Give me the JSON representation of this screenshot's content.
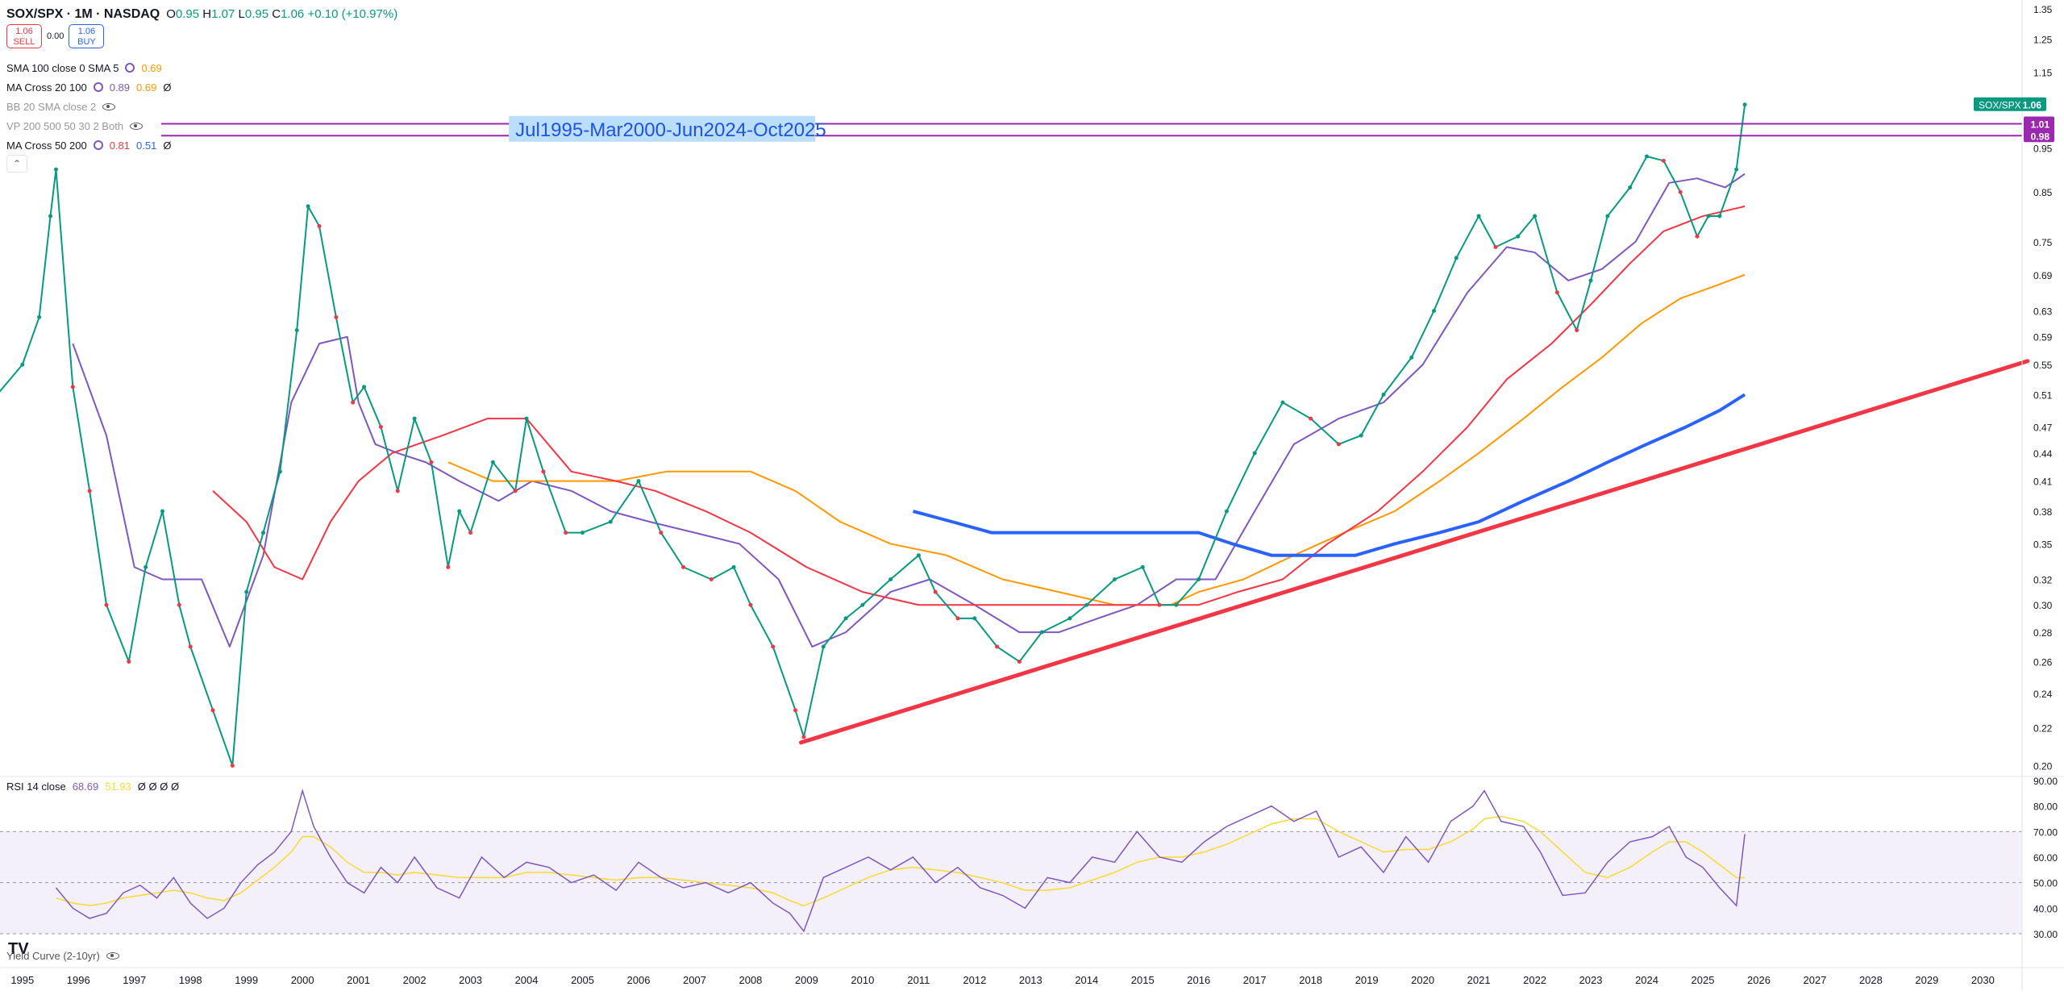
{
  "header": {
    "symbol": "SOX/SPX · 1M · NASDAQ",
    "ohlc": {
      "o_label": "O",
      "o": "0.95",
      "h_label": "H",
      "h": "1.07",
      "l_label": "L",
      "l": "0.95",
      "c_label": "C",
      "c": "1.06",
      "change": "+0.10 (+10.97%)"
    }
  },
  "trade": {
    "sell_price": "1.06",
    "sell_label": "SELL",
    "spread": "0.00",
    "buy_price": "1.06",
    "buy_label": "BUY"
  },
  "indicators": [
    {
      "name": "SMA 100 close 0 SMA 5",
      "v1": "0.69",
      "v2": "",
      "v3": "",
      "c1": "#ff9800",
      "c2": "",
      "visible": true
    },
    {
      "name": "MA Cross 20 100",
      "v1": "0.89",
      "v2": "0.69",
      "v3": "Ø",
      "c1": "#7e57c2",
      "c2": "#ff9800",
      "visible": true
    },
    {
      "name": "BB 20 SMA close 2",
      "v1": "",
      "v2": "",
      "v3": "",
      "c1": "",
      "c2": "",
      "visible": false
    },
    {
      "name": "VP 200 500 50 30 2 Both",
      "v1": "",
      "v2": "",
      "v3": "",
      "c1": "",
      "c2": "",
      "visible": false
    },
    {
      "name": "MA Cross 50 200",
      "v1": "0.81",
      "v2": "0.51",
      "v3": "Ø",
      "c1": "#f23645",
      "c2": "#2962ff",
      "visible": true
    }
  ],
  "collapse_glyph": "⌃",
  "rsi_legend": {
    "name": "RSI 14 close",
    "v1": "68.69",
    "v2": "51.93",
    "rest": "Ø Ø Ø Ø"
  },
  "yield_curve_legend": "Yield Curve (2-10yr)",
  "logo": "TV",
  "annotation": "Jul1995-Mar2000-Jun2024-Oct2025",
  "price_badges": [
    {
      "label": "SOX/SPX",
      "value": "1.06",
      "color": "#089981"
    },
    {
      "value": "1.01",
      "color": "#9c27b0"
    },
    {
      "value": "0.98",
      "color": "#9c27b0"
    }
  ],
  "chart_data": {
    "type": "line",
    "title": "SOX/SPX · 1M · NASDAQ",
    "scale": "log",
    "ylim": [
      0.195,
      1.38
    ],
    "xlim": [
      1994.6,
      2030.7
    ],
    "y_ticks": [
      "1.35",
      "1.25",
      "1.15",
      "1.06",
      "1.01",
      "0.98",
      "0.95",
      "0.85",
      "0.75",
      "0.69",
      "0.63",
      "0.59",
      "0.55",
      "0.51",
      "0.47",
      "0.44",
      "0.41",
      "0.38",
      "0.35",
      "0.32",
      "0.30",
      "0.28",
      "0.26",
      "0.24",
      "0.22",
      "0.20"
    ],
    "x_ticks": [
      "1995",
      "1996",
      "1997",
      "1998",
      "1999",
      "2000",
      "2001",
      "2002",
      "2003",
      "2004",
      "2005",
      "2006",
      "2007",
      "2008",
      "2009",
      "2010",
      "2011",
      "2012",
      "2013",
      "2014",
      "2015",
      "2016",
      "2017",
      "2018",
      "2019",
      "2020",
      "2021",
      "2022",
      "2023",
      "2024",
      "2025",
      "2026",
      "2027",
      "2028",
      "2029",
      "2030"
    ],
    "price": {
      "name": "SOX/SPX",
      "x": [
        1994.55,
        1995.0,
        1995.3,
        1995.5,
        1995.6,
        1995.9,
        1996.2,
        1996.5,
        1996.9,
        1997.2,
        1997.5,
        1997.8,
        1998.0,
        1998.4,
        1998.75,
        1999.0,
        1999.3,
        1999.6,
        1999.9,
        2000.1,
        2000.3,
        2000.6,
        2000.9,
        2001.1,
        2001.4,
        2001.7,
        2002.0,
        2002.3,
        2002.6,
        2002.8,
        2003.0,
        2003.4,
        2003.8,
        2004.0,
        2004.3,
        2004.7,
        2005.0,
        2005.5,
        2006.0,
        2006.4,
        2006.8,
        2007.3,
        2007.7,
        2008.0,
        2008.4,
        2008.8,
        2008.95,
        2009.3,
        2009.7,
        2010.0,
        2010.5,
        2011.0,
        2011.3,
        2011.7,
        2012.0,
        2012.4,
        2012.8,
        2013.2,
        2013.7,
        2014.0,
        2014.5,
        2015.0,
        2015.3,
        2015.6,
        2016.0,
        2016.5,
        2017.0,
        2017.5,
        2018.0,
        2018.5,
        2018.9,
        2019.3,
        2019.8,
        2020.2,
        2020.6,
        2021.0,
        2021.3,
        2021.7,
        2022.0,
        2022.4,
        2022.75,
        2023.0,
        2023.3,
        2023.7,
        2024.0,
        2024.3,
        2024.6,
        2024.9,
        2025.1,
        2025.3,
        2025.6,
        2025.75
      ],
      "y": [
        0.51,
        0.55,
        0.62,
        0.8,
        0.9,
        0.52,
        0.4,
        0.3,
        0.26,
        0.33,
        0.38,
        0.3,
        0.27,
        0.23,
        0.2,
        0.31,
        0.36,
        0.42,
        0.6,
        0.82,
        0.78,
        0.62,
        0.5,
        0.52,
        0.47,
        0.4,
        0.48,
        0.43,
        0.33,
        0.38,
        0.36,
        0.43,
        0.4,
        0.48,
        0.42,
        0.36,
        0.36,
        0.37,
        0.41,
        0.36,
        0.33,
        0.32,
        0.33,
        0.3,
        0.27,
        0.23,
        0.215,
        0.27,
        0.29,
        0.3,
        0.32,
        0.34,
        0.31,
        0.29,
        0.29,
        0.27,
        0.26,
        0.28,
        0.29,
        0.3,
        0.32,
        0.33,
        0.3,
        0.3,
        0.32,
        0.38,
        0.44,
        0.5,
        0.48,
        0.45,
        0.46,
        0.51,
        0.56,
        0.63,
        0.72,
        0.8,
        0.74,
        0.76,
        0.8,
        0.66,
        0.6,
        0.68,
        0.8,
        0.86,
        0.93,
        0.92,
        0.85,
        0.76,
        0.8,
        0.8,
        0.9,
        1.06
      ]
    },
    "series": [
      {
        "name": "MA Cross 20",
        "color": "#7e57c2",
        "x": [
          1995.9,
          1996.5,
          1997.0,
          1997.5,
          1998.2,
          1998.7,
          1999.3,
          1999.8,
          2000.3,
          2000.8,
          2001.0,
          2001.3,
          2001.7,
          2002.2,
          2002.8,
          2003.5,
          2004.1,
          2004.8,
          2005.5,
          2006.2,
          2007.0,
          2007.8,
          2008.5,
          2009.1,
          2009.7,
          2010.5,
          2011.2,
          2012.0,
          2012.8,
          2013.5,
          2014.2,
          2014.9,
          2015.6,
          2016.3,
          2017.0,
          2017.7,
          2018.5,
          2019.3,
          2020.0,
          2020.8,
          2021.5,
          2022.0,
          2022.6,
          2023.2,
          2023.8,
          2024.4,
          2024.9,
          2025.4,
          2025.75
        ],
        "y": [
          0.58,
          0.46,
          0.33,
          0.32,
          0.32,
          0.27,
          0.34,
          0.5,
          0.58,
          0.59,
          0.5,
          0.45,
          0.44,
          0.43,
          0.41,
          0.39,
          0.41,
          0.4,
          0.38,
          0.37,
          0.36,
          0.35,
          0.32,
          0.27,
          0.28,
          0.31,
          0.32,
          0.3,
          0.28,
          0.28,
          0.29,
          0.3,
          0.32,
          0.32,
          0.38,
          0.45,
          0.48,
          0.5,
          0.55,
          0.66,
          0.74,
          0.73,
          0.68,
          0.7,
          0.75,
          0.87,
          0.88,
          0.86,
          0.89
        ]
      },
      {
        "name": "SMA 100",
        "color": "#ff9800",
        "x": [
          2002.6,
          2003.4,
          2004.0,
          2004.8,
          2005.6,
          2006.5,
          2007.3,
          2008.0,
          2008.8,
          2009.6,
          2010.5,
          2011.5,
          2012.5,
          2013.5,
          2014.5,
          2015.0,
          2015.5,
          2016.0,
          2016.8,
          2017.7,
          2018.6,
          2019.5,
          2020.3,
          2021.0,
          2021.8,
          2022.5,
          2023.2,
          2023.9,
          2024.6,
          2025.2,
          2025.75
        ],
        "y": [
          0.43,
          0.41,
          0.41,
          0.41,
          0.41,
          0.42,
          0.42,
          0.42,
          0.4,
          0.37,
          0.35,
          0.34,
          0.32,
          0.31,
          0.3,
          0.3,
          0.3,
          0.31,
          0.32,
          0.34,
          0.36,
          0.38,
          0.41,
          0.44,
          0.48,
          0.52,
          0.56,
          0.61,
          0.65,
          0.67,
          0.69
        ]
      },
      {
        "name": "MA Cross 50",
        "color": "#f23645",
        "x": [
          1998.4,
          1999.0,
          1999.5,
          2000.0,
          2000.5,
          2001.0,
          2001.6,
          2002.5,
          2003.3,
          2004.0,
          2004.8,
          2005.6,
          2006.3,
          2007.2,
          2008.0,
          2009.0,
          2010.0,
          2011.0,
          2012.0,
          2013.0,
          2014.0,
          2015.0,
          2016.0,
          2016.7,
          2017.5,
          2018.3,
          2019.2,
          2020.0,
          2020.8,
          2021.5,
          2022.3,
          2023.0,
          2023.7,
          2024.3,
          2025.0,
          2025.75
        ],
        "y": [
          0.4,
          0.37,
          0.33,
          0.32,
          0.37,
          0.41,
          0.44,
          0.46,
          0.48,
          0.48,
          0.42,
          0.41,
          0.4,
          0.38,
          0.36,
          0.33,
          0.31,
          0.3,
          0.3,
          0.3,
          0.3,
          0.3,
          0.3,
          0.31,
          0.32,
          0.35,
          0.38,
          0.42,
          0.47,
          0.53,
          0.58,
          0.64,
          0.71,
          0.77,
          0.8,
          0.82
        ]
      },
      {
        "name": "MA Cross 200",
        "color": "#2962ff",
        "x": [
          2010.9,
          2011.6,
          2012.3,
          2013.0,
          2014.0,
          2015.0,
          2016.0,
          2016.6,
          2017.3,
          2018.0,
          2018.8,
          2019.5,
          2020.3,
          2021.0,
          2021.8,
          2022.6,
          2023.3,
          2024.0,
          2024.7,
          2025.3,
          2025.75
        ],
        "y": [
          0.38,
          0.37,
          0.36,
          0.36,
          0.36,
          0.36,
          0.36,
          0.35,
          0.34,
          0.34,
          0.34,
          0.35,
          0.36,
          0.37,
          0.39,
          0.41,
          0.43,
          0.45,
          0.47,
          0.49,
          0.51
        ]
      }
    ],
    "trendline": {
      "color": "#f23645",
      "x": [
        2008.9,
        2030.8
      ],
      "y": [
        0.212,
        0.555
      ]
    },
    "horizontal_lines": [
      {
        "y": 1.01,
        "color": "#9c27b0"
      },
      {
        "y": 0.98,
        "color": "#9c27b0"
      }
    ],
    "rsi": {
      "ylim": [
        30,
        90
      ],
      "y_ticks": [
        "90.00",
        "80.00",
        "70.00",
        "60.00",
        "50.00",
        "40.00",
        "30.00"
      ],
      "band": [
        30,
        70
      ],
      "x": [
        1995.6,
        1995.9,
        1996.2,
        1996.5,
        1996.8,
        1997.1,
        1997.4,
        1997.7,
        1998.0,
        1998.3,
        1998.6,
        1998.9,
        1999.2,
        1999.5,
        1999.8,
        2000.0,
        2000.2,
        2000.5,
        2000.8,
        2001.1,
        2001.4,
        2001.7,
        2002.0,
        2002.4,
        2002.8,
        2003.2,
        2003.6,
        2004.0,
        2004.4,
        2004.8,
        2005.2,
        2005.6,
        2006.0,
        2006.4,
        2006.8,
        2007.2,
        2007.6,
        2008.0,
        2008.4,
        2008.7,
        2008.95,
        2009.3,
        2009.7,
        2010.1,
        2010.5,
        2010.9,
        2011.3,
        2011.7,
        2012.1,
        2012.5,
        2012.9,
        2013.3,
        2013.7,
        2014.1,
        2014.5,
        2014.9,
        2015.3,
        2015.7,
        2016.1,
        2016.5,
        2016.9,
        2017.3,
        2017.7,
        2018.1,
        2018.5,
        2018.9,
        2019.3,
        2019.7,
        2020.1,
        2020.5,
        2020.9,
        2021.1,
        2021.4,
        2021.8,
        2022.1,
        2022.5,
        2022.9,
        2023.3,
        2023.7,
        2024.1,
        2024.4,
        2024.7,
        2025.0,
        2025.3,
        2025.6,
        2025.75
      ],
      "y": [
        48,
        40,
        36,
        38,
        46,
        49,
        44,
        52,
        42,
        36,
        40,
        50,
        57,
        62,
        70,
        86,
        72,
        60,
        50,
        46,
        56,
        50,
        60,
        48,
        44,
        60,
        52,
        58,
        56,
        50,
        53,
        47,
        58,
        52,
        48,
        50,
        46,
        50,
        42,
        38,
        31,
        52,
        56,
        60,
        55,
        60,
        50,
        56,
        48,
        45,
        40,
        52,
        50,
        60,
        58,
        70,
        60,
        58,
        66,
        72,
        76,
        80,
        74,
        78,
        60,
        64,
        54,
        68,
        58,
        74,
        80,
        86,
        74,
        72,
        62,
        45,
        46,
        58,
        66,
        68,
        72,
        60,
        56,
        48,
        41,
        69
      ],
      "signal_y": [
        44,
        42,
        41,
        42,
        44,
        45,
        46,
        47,
        46,
        44,
        43,
        46,
        51,
        56,
        62,
        68,
        68,
        64,
        58,
        54,
        54,
        53,
        54,
        53,
        52,
        52,
        52,
        54,
        54,
        53,
        52,
        51,
        52,
        52,
        51,
        50,
        49,
        48,
        46,
        43,
        41,
        44,
        48,
        52,
        55,
        56,
        55,
        54,
        52,
        50,
        47,
        47,
        48,
        51,
        54,
        58,
        60,
        60,
        62,
        65,
        69,
        73,
        75,
        75,
        70,
        66,
        62,
        63,
        63,
        66,
        71,
        75,
        76,
        74,
        70,
        62,
        54,
        52,
        56,
        62,
        66,
        66,
        62,
        57,
        52,
        51.93
      ]
    }
  }
}
